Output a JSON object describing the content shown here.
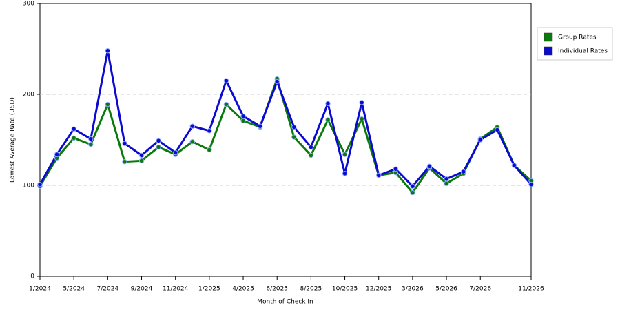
{
  "chart_data": {
    "type": "line",
    "x_label": "Month of Check In",
    "y_label": "Lowest Average Rate (USD)",
    "categories": [
      "1/2024",
      null,
      "5/2024",
      null,
      "7/2024",
      null,
      "9/2024",
      null,
      "11/2024",
      null,
      "1/2025",
      null,
      "4/2025",
      null,
      "6/2025",
      null,
      "8/2025",
      null,
      "10/2025",
      null,
      "12/2025",
      null,
      "3/2026",
      null,
      "5/2026",
      null,
      "7/2026",
      null,
      null,
      "11/2026"
    ],
    "series": [
      {
        "name": "Group Rates",
        "color": "#0a7a0a",
        "values": [
          99,
          130,
          152,
          145,
          189,
          126,
          127,
          142,
          134,
          148,
          139,
          189,
          171,
          164,
          217,
          153,
          133,
          172,
          134,
          173,
          111,
          114,
          92,
          119,
          102,
          113,
          151,
          164,
          122,
          105
        ]
      },
      {
        "name": "Individual Rates",
        "color": "#0a0ad2",
        "values": [
          101,
          134,
          162,
          151,
          248,
          146,
          133,
          149,
          136,
          165,
          160,
          215,
          176,
          165,
          214,
          164,
          142,
          190,
          113,
          191,
          111,
          118,
          99,
          121,
          107,
          115,
          150,
          161,
          122,
          101
        ]
      }
    ],
    "ylim": [
      0,
      300
    ],
    "yticks": [
      0,
      100,
      200,
      300
    ],
    "grid": true,
    "legend": "right"
  }
}
